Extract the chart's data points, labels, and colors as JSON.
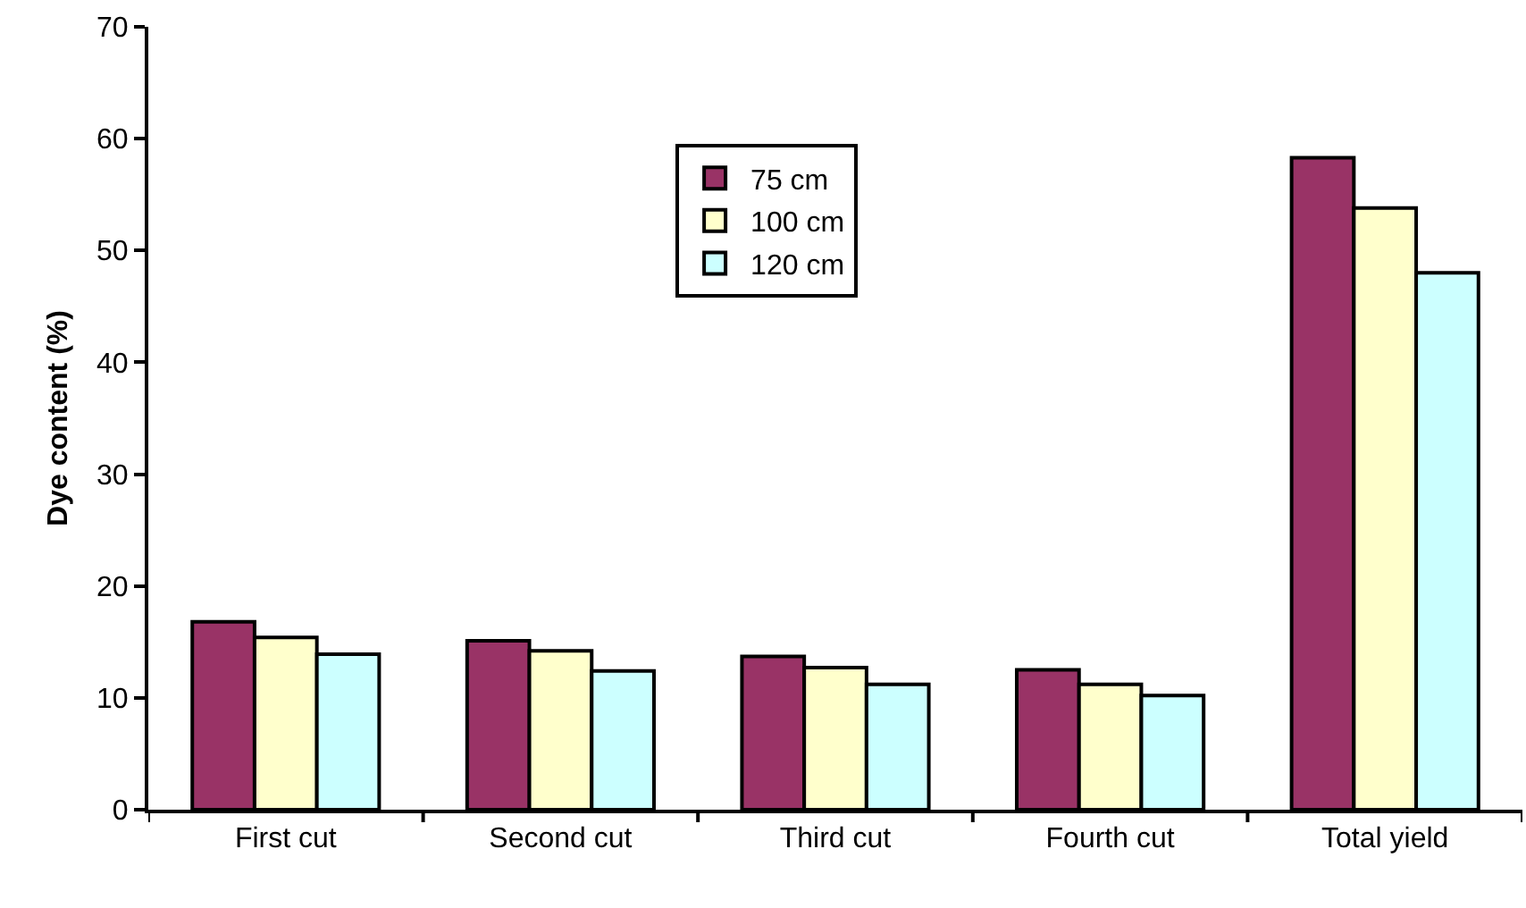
{
  "chart_data": {
    "type": "bar",
    "ylabel": "Dye content (%)",
    "categories": [
      "First cut",
      "Second cut",
      "Third cut",
      "Fourth cut",
      "Total yield"
    ],
    "series": [
      {
        "name": "75 cm",
        "color": "#993366",
        "values": [
          16.8,
          15.1,
          13.7,
          12.5,
          58.3
        ]
      },
      {
        "name": "100 cm",
        "color": "#ffffcc",
        "values": [
          15.4,
          14.2,
          12.7,
          11.2,
          53.8
        ]
      },
      {
        "name": "120 cm",
        "color": "#ccffff",
        "values": [
          13.9,
          12.4,
          11.2,
          10.2,
          48.0
        ]
      }
    ],
    "ylim": [
      0,
      70
    ],
    "yticks": [
      0,
      10,
      20,
      30,
      40,
      50,
      60,
      70
    ],
    "grid": false,
    "legend": "top"
  }
}
